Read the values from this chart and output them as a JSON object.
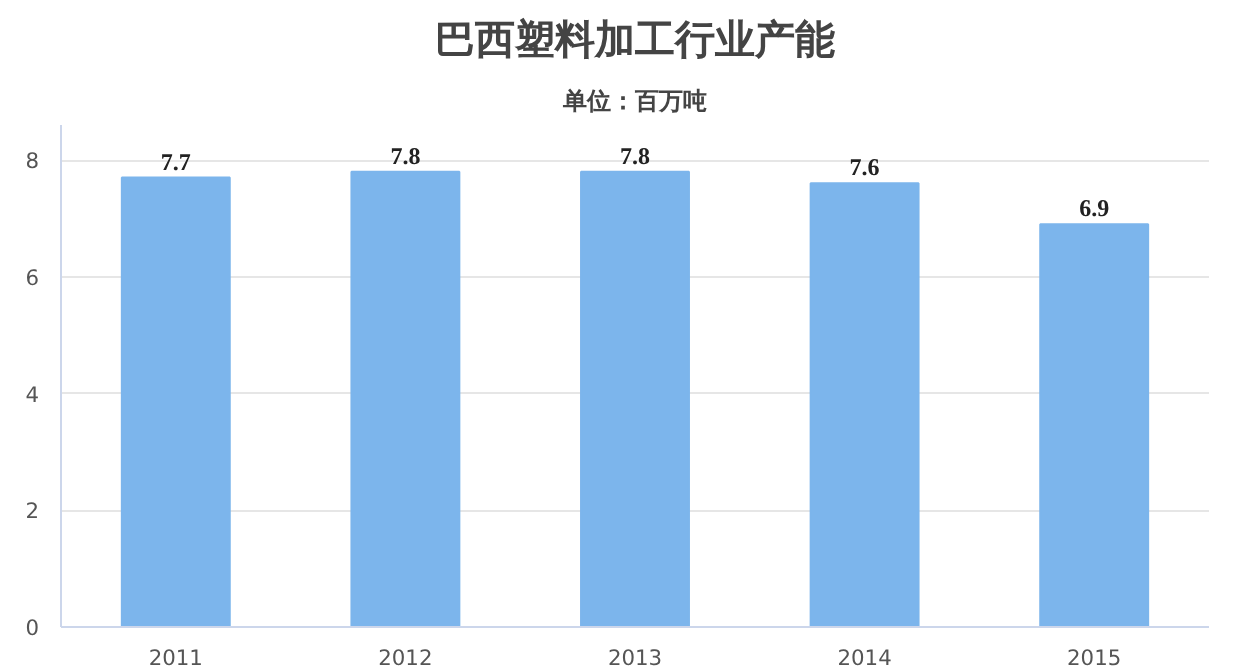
{
  "chart_data": {
    "type": "bar",
    "title": "巴西塑料加工行业产能",
    "subtitle": "单位：百万吨",
    "categories": [
      "2011",
      "2012",
      "2013",
      "2014",
      "2015"
    ],
    "values": [
      7.7,
      7.8,
      7.8,
      7.6,
      6.9
    ],
    "color": "#7cb5ec",
    "ylim": [
      0,
      8.6
    ],
    "yticks": [
      0,
      2,
      4,
      6,
      8
    ],
    "grid": "y",
    "data_labels": true
  }
}
